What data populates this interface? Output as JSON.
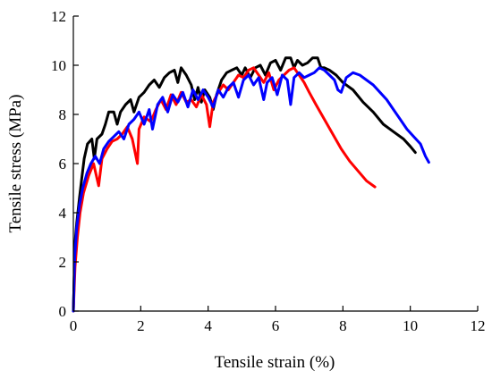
{
  "chart_data": {
    "type": "line",
    "title": "",
    "xlabel": "Tensile strain (%)",
    "ylabel": "Tensile stress (MPa)",
    "xlim": [
      0,
      12
    ],
    "ylim": [
      0,
      12
    ],
    "xticks": [
      "0",
      "2",
      "4",
      "6",
      "8",
      "10",
      "12"
    ],
    "yticks": [
      "0",
      "2",
      "4",
      "6",
      "8",
      "10",
      "12"
    ],
    "grid": false,
    "legend": "none",
    "series": [
      {
        "color": "#000000",
        "points": [
          [
            0,
            0
          ],
          [
            0.05,
            2.8
          ],
          [
            0.1,
            3.6
          ],
          [
            0.18,
            4.6
          ],
          [
            0.25,
            5.4
          ],
          [
            0.32,
            6.2
          ],
          [
            0.42,
            6.8
          ],
          [
            0.55,
            7.0
          ],
          [
            0.62,
            6.2
          ],
          [
            0.7,
            7.0
          ],
          [
            0.85,
            7.2
          ],
          [
            0.95,
            7.6
          ],
          [
            1.05,
            8.1
          ],
          [
            1.2,
            8.1
          ],
          [
            1.3,
            7.6
          ],
          [
            1.4,
            8.1
          ],
          [
            1.55,
            8.4
          ],
          [
            1.7,
            8.6
          ],
          [
            1.8,
            8.1
          ],
          [
            1.95,
            8.7
          ],
          [
            2.1,
            8.9
          ],
          [
            2.25,
            9.2
          ],
          [
            2.4,
            9.4
          ],
          [
            2.55,
            9.1
          ],
          [
            2.7,
            9.5
          ],
          [
            2.85,
            9.7
          ],
          [
            3.0,
            9.8
          ],
          [
            3.1,
            9.3
          ],
          [
            3.2,
            9.9
          ],
          [
            3.35,
            9.6
          ],
          [
            3.5,
            9.2
          ],
          [
            3.6,
            8.6
          ],
          [
            3.7,
            9.1
          ],
          [
            3.8,
            8.5
          ],
          [
            3.9,
            9.0
          ],
          [
            4.05,
            8.7
          ],
          [
            4.15,
            8.2
          ],
          [
            4.25,
            8.8
          ],
          [
            4.4,
            9.4
          ],
          [
            4.55,
            9.7
          ],
          [
            4.7,
            9.8
          ],
          [
            4.85,
            9.9
          ],
          [
            5.0,
            9.6
          ],
          [
            5.1,
            9.9
          ],
          [
            5.25,
            9.5
          ],
          [
            5.4,
            9.9
          ],
          [
            5.55,
            10.0
          ],
          [
            5.7,
            9.6
          ],
          [
            5.85,
            10.1
          ],
          [
            6.0,
            10.2
          ],
          [
            6.15,
            9.8
          ],
          [
            6.3,
            10.3
          ],
          [
            6.45,
            10.3
          ],
          [
            6.55,
            9.9
          ],
          [
            6.65,
            10.2
          ],
          [
            6.8,
            10.0
          ],
          [
            6.95,
            10.1
          ],
          [
            7.1,
            10.3
          ],
          [
            7.25,
            10.3
          ],
          [
            7.35,
            9.9
          ],
          [
            7.45,
            9.9
          ],
          [
            7.6,
            9.8
          ],
          [
            7.8,
            9.6
          ],
          [
            8.0,
            9.3
          ],
          [
            8.3,
            9.0
          ],
          [
            8.6,
            8.5
          ],
          [
            8.9,
            8.1
          ],
          [
            9.2,
            7.6
          ],
          [
            9.5,
            7.3
          ],
          [
            9.8,
            7.0
          ],
          [
            10.0,
            6.7
          ],
          [
            10.15,
            6.45
          ]
        ]
      },
      {
        "color": "#ff0000",
        "points": [
          [
            0,
            0
          ],
          [
            0.05,
            1.8
          ],
          [
            0.12,
            3.0
          ],
          [
            0.2,
            4.0
          ],
          [
            0.3,
            4.8
          ],
          [
            0.45,
            5.5
          ],
          [
            0.6,
            6.0
          ],
          [
            0.75,
            5.1
          ],
          [
            0.85,
            6.2
          ],
          [
            1.0,
            6.6
          ],
          [
            1.15,
            6.9
          ],
          [
            1.3,
            7.0
          ],
          [
            1.45,
            7.2
          ],
          [
            1.6,
            7.5
          ],
          [
            1.75,
            7.0
          ],
          [
            1.9,
            6.0
          ],
          [
            1.95,
            7.4
          ],
          [
            2.1,
            7.9
          ],
          [
            2.3,
            7.7
          ],
          [
            2.45,
            8.2
          ],
          [
            2.6,
            8.6
          ],
          [
            2.75,
            8.2
          ],
          [
            2.9,
            8.8
          ],
          [
            3.05,
            8.4
          ],
          [
            3.2,
            8.9
          ],
          [
            3.35,
            8.5
          ],
          [
            3.5,
            8.6
          ],
          [
            3.65,
            8.3
          ],
          [
            3.8,
            8.8
          ],
          [
            3.95,
            8.4
          ],
          [
            4.05,
            7.5
          ],
          [
            4.15,
            8.5
          ],
          [
            4.3,
            8.9
          ],
          [
            4.45,
            9.2
          ],
          [
            4.6,
            9.0
          ],
          [
            4.75,
            9.3
          ],
          [
            4.9,
            9.6
          ],
          [
            5.05,
            9.5
          ],
          [
            5.2,
            9.8
          ],
          [
            5.35,
            9.9
          ],
          [
            5.5,
            9.6
          ],
          [
            5.65,
            9.3
          ],
          [
            5.8,
            9.7
          ],
          [
            5.95,
            9.0
          ],
          [
            6.1,
            9.4
          ],
          [
            6.25,
            9.6
          ],
          [
            6.4,
            9.8
          ],
          [
            6.55,
            9.9
          ],
          [
            6.7,
            9.6
          ],
          [
            6.85,
            9.3
          ],
          [
            7.0,
            8.9
          ],
          [
            7.2,
            8.4
          ],
          [
            7.45,
            7.8
          ],
          [
            7.7,
            7.2
          ],
          [
            7.95,
            6.6
          ],
          [
            8.2,
            6.1
          ],
          [
            8.45,
            5.7
          ],
          [
            8.7,
            5.3
          ],
          [
            8.95,
            5.05
          ]
        ]
      },
      {
        "color": "#0000ff",
        "points": [
          [
            0,
            0
          ],
          [
            0.04,
            2.2
          ],
          [
            0.1,
            3.4
          ],
          [
            0.18,
            4.3
          ],
          [
            0.28,
            5.0
          ],
          [
            0.4,
            5.6
          ],
          [
            0.52,
            6.0
          ],
          [
            0.65,
            6.3
          ],
          [
            0.78,
            6.0
          ],
          [
            0.9,
            6.6
          ],
          [
            1.05,
            6.9
          ],
          [
            1.2,
            7.1
          ],
          [
            1.35,
            7.3
          ],
          [
            1.5,
            7.0
          ],
          [
            1.65,
            7.6
          ],
          [
            1.8,
            7.8
          ],
          [
            1.95,
            8.1
          ],
          [
            2.1,
            7.6
          ],
          [
            2.25,
            8.2
          ],
          [
            2.35,
            7.4
          ],
          [
            2.5,
            8.4
          ],
          [
            2.65,
            8.7
          ],
          [
            2.8,
            8.1
          ],
          [
            2.95,
            8.8
          ],
          [
            3.1,
            8.5
          ],
          [
            3.25,
            8.9
          ],
          [
            3.4,
            8.3
          ],
          [
            3.55,
            9.0
          ],
          [
            3.7,
            8.6
          ],
          [
            3.85,
            9.0
          ],
          [
            4.0,
            8.7
          ],
          [
            4.15,
            8.3
          ],
          [
            4.3,
            9.0
          ],
          [
            4.45,
            8.7
          ],
          [
            4.6,
            9.1
          ],
          [
            4.75,
            9.3
          ],
          [
            4.9,
            8.7
          ],
          [
            5.05,
            9.4
          ],
          [
            5.2,
            9.6
          ],
          [
            5.35,
            9.2
          ],
          [
            5.5,
            9.5
          ],
          [
            5.65,
            8.6
          ],
          [
            5.75,
            9.3
          ],
          [
            5.9,
            9.5
          ],
          [
            6.05,
            8.8
          ],
          [
            6.2,
            9.6
          ],
          [
            6.35,
            9.4
          ],
          [
            6.45,
            8.4
          ],
          [
            6.55,
            9.5
          ],
          [
            6.7,
            9.7
          ],
          [
            6.85,
            9.5
          ],
          [
            7.0,
            9.6
          ],
          [
            7.15,
            9.7
          ],
          [
            7.3,
            9.9
          ],
          [
            7.45,
            9.8
          ],
          [
            7.6,
            9.6
          ],
          [
            7.75,
            9.4
          ],
          [
            7.85,
            9.0
          ],
          [
            7.95,
            8.9
          ],
          [
            8.1,
            9.5
          ],
          [
            8.3,
            9.7
          ],
          [
            8.5,
            9.6
          ],
          [
            8.7,
            9.4
          ],
          [
            8.9,
            9.2
          ],
          [
            9.1,
            8.9
          ],
          [
            9.3,
            8.6
          ],
          [
            9.5,
            8.2
          ],
          [
            9.7,
            7.8
          ],
          [
            9.9,
            7.4
          ],
          [
            10.1,
            7.1
          ],
          [
            10.3,
            6.8
          ],
          [
            10.45,
            6.3
          ],
          [
            10.55,
            6.05
          ]
        ]
      }
    ]
  }
}
